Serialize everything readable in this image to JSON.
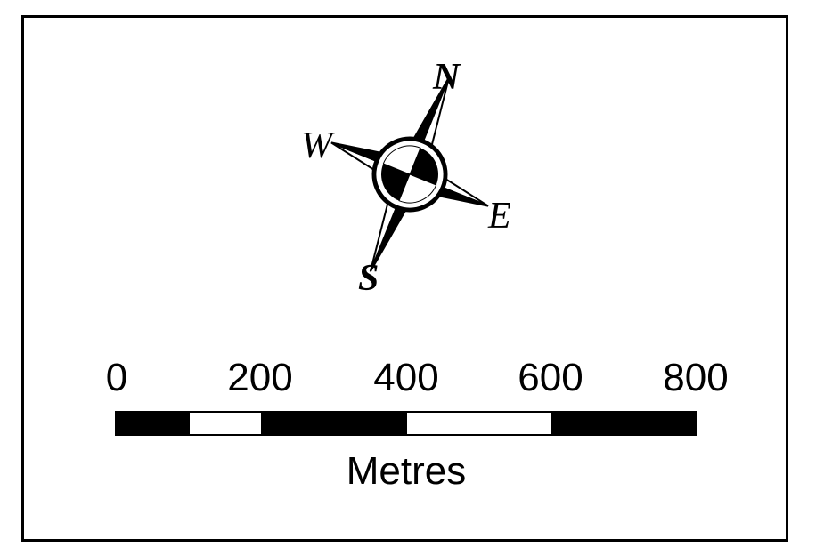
{
  "compass": {
    "north": "N",
    "south": "S",
    "east": "E",
    "west": "W"
  },
  "scale": {
    "ticks": [
      "0",
      "200",
      "400",
      "600",
      "800"
    ],
    "units": "Metres",
    "segments": [
      "black",
      "white",
      "black",
      "black",
      "white",
      "black"
    ]
  }
}
